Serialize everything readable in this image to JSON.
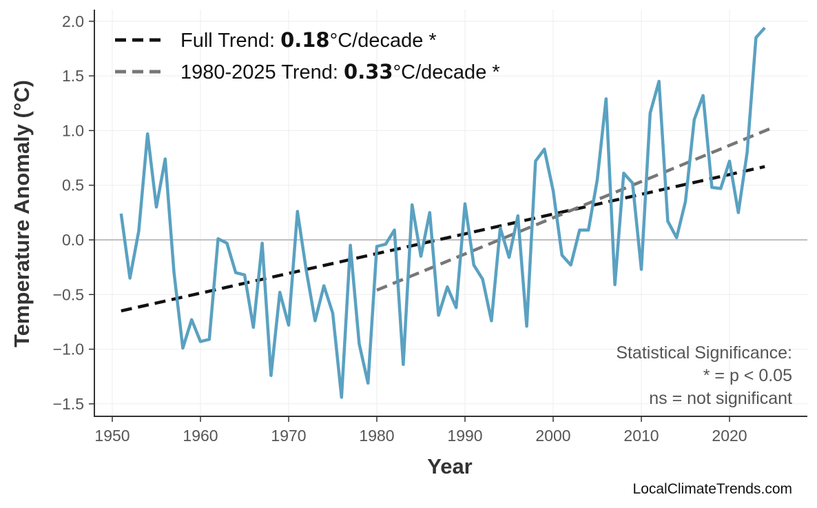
{
  "chart_data": {
    "type": "line",
    "title": "",
    "xlabel": "Year",
    "ylabel": "Temperature Anomaly (°C)",
    "xlim": [
      1947.9,
      2028.8
    ],
    "ylim": [
      -1.6,
      2.1
    ],
    "grid": true,
    "x_ticks": [
      "1950",
      "1960",
      "1970",
      "1980",
      "1990",
      "2000",
      "2010",
      "2020"
    ],
    "y_ticks": [
      "2.0",
      "1.5",
      "1.0",
      "0.5",
      "0.0",
      "−0.5",
      "−1.0",
      "−1.5"
    ],
    "colors": {
      "series": "#579fc0",
      "full_trend": "#111111",
      "recent_trend": "#777777",
      "zero_line": "#aaaaaa"
    },
    "series": [
      {
        "x": [
          1951,
          1952,
          1953,
          1954,
          1955,
          1956,
          1957,
          1958,
          1959,
          1960,
          1961,
          1962,
          1963,
          1964,
          1965,
          1966,
          1967,
          1968,
          1969,
          1970,
          1971,
          1972,
          1973,
          1974,
          1975,
          1976,
          1977,
          1978,
          1979,
          1980,
          1981,
          1982,
          1983,
          1984,
          1985,
          1986,
          1987,
          1988,
          1989,
          1990,
          1991,
          1992,
          1993,
          1994,
          1995,
          1996,
          1997,
          1998,
          1999,
          2000,
          2001,
          2002,
          2003,
          2004,
          2005,
          2006,
          2007,
          2008,
          2009,
          2010,
          2011,
          2012,
          2013,
          2014,
          2015,
          2016,
          2017,
          2018,
          2019,
          2020,
          2021,
          2022,
          2023,
          2024
        ],
        "values": [
          0.24,
          -0.35,
          0.08,
          0.97,
          0.3,
          0.74,
          -0.3,
          -0.99,
          -0.73,
          -0.93,
          -0.91,
          0.01,
          -0.03,
          -0.3,
          -0.32,
          -0.8,
          -0.03,
          -1.24,
          -0.48,
          -0.78,
          0.26,
          -0.28,
          -0.74,
          -0.42,
          -0.67,
          -1.44,
          -0.05,
          -0.95,
          -1.31,
          -0.06,
          -0.04,
          0.09,
          -1.14,
          0.32,
          -0.15,
          0.25,
          -0.69,
          -0.43,
          -0.62,
          0.33,
          -0.23,
          -0.36,
          -0.74,
          0.11,
          -0.16,
          0.22,
          -0.79,
          0.72,
          0.83,
          0.45,
          -0.14,
          -0.23,
          0.09,
          0.09,
          0.55,
          1.29,
          -0.41,
          0.61,
          0.52,
          -0.27,
          1.16,
          1.45,
          0.17,
          0.02,
          0.35,
          1.1,
          1.32,
          0.48,
          0.47,
          0.72,
          0.25,
          0.8,
          1.85,
          1.94
        ]
      }
    ],
    "trends": [
      {
        "x": [
          1951,
          2024
        ],
        "y": [
          -0.65,
          0.67
        ],
        "style": "dashed"
      },
      {
        "x": [
          1980,
          2025
        ],
        "y": [
          -0.46,
          1.03
        ],
        "style": "dashed"
      }
    ],
    "legend": {
      "placement": "top-left",
      "entries": [
        {
          "prefix": "Full Trend: ",
          "value": "0.18",
          "suffix": "°C/decade *"
        },
        {
          "prefix": "1980-2025 Trend: ",
          "value": "0.33",
          "suffix": "°C/decade *"
        }
      ]
    },
    "annotation": [
      "Statistical Significance:",
      "* = p < 0.05",
      "ns = not significant"
    ],
    "credit": "LocalClimateTrends.com"
  }
}
